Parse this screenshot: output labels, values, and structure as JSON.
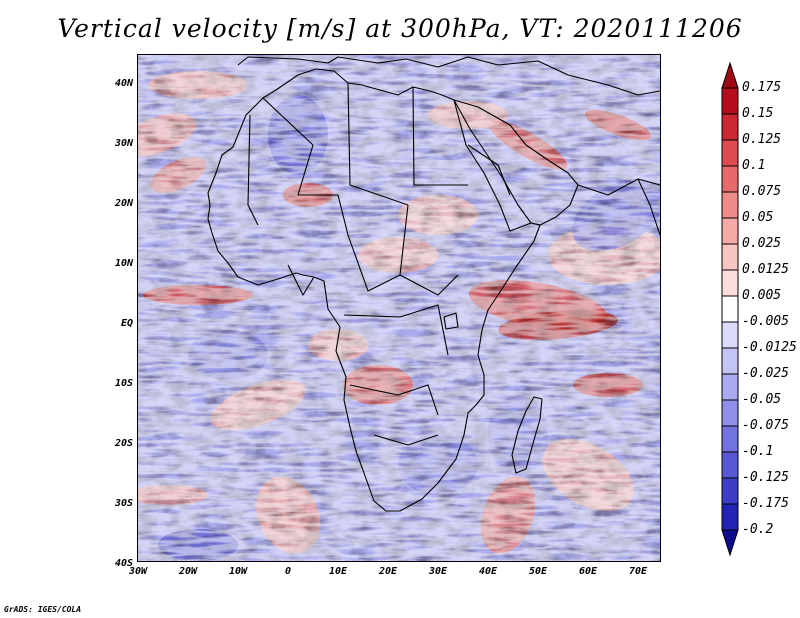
{
  "title": "Vertical velocity [m/s] at 300hPa, VT: 2020111206",
  "credit": "GrADS: IGES/COLA",
  "map": {
    "lat_labels": [
      "40N",
      "30N",
      "20N",
      "10N",
      "EQ",
      "10S",
      "20S",
      "30S",
      "40S"
    ],
    "lon_labels": [
      "30W",
      "20W",
      "10W",
      "0",
      "10E",
      "20E",
      "30E",
      "40E",
      "50E",
      "60E",
      "70E"
    ],
    "lat_range": [
      -40,
      45
    ],
    "lon_range": [
      -30,
      76
    ],
    "projection": "latlon",
    "field": "vertical velocity",
    "level": "300hPa",
    "valid_time": "2020111206"
  },
  "colorbar": {
    "levels": [
      "0.175",
      "0.15",
      "0.125",
      "0.1",
      "0.075",
      "0.05",
      "0.025",
      "0.0125",
      "0.005",
      "-0.005",
      "-0.0125",
      "-0.025",
      "-0.05",
      "-0.075",
      "-0.1",
      "-0.125",
      "-0.175",
      "-0.2"
    ],
    "colors": [
      "#b40e1e",
      "#cc2832",
      "#dd4a4f",
      "#e66a6b",
      "#ee8c8a",
      "#f4aaa6",
      "#f8c6c2",
      "#fbdedb",
      "#ffffff",
      "#dcdcf8",
      "#c4c4f4",
      "#aaaaf0",
      "#8f8fe9",
      "#7373e0",
      "#5858d4",
      "#3d3dc6",
      "#2323b4",
      "#1414a0"
    ],
    "top_triangle": "#a00a14",
    "bottom_triangle": "#0c0c8c"
  }
}
